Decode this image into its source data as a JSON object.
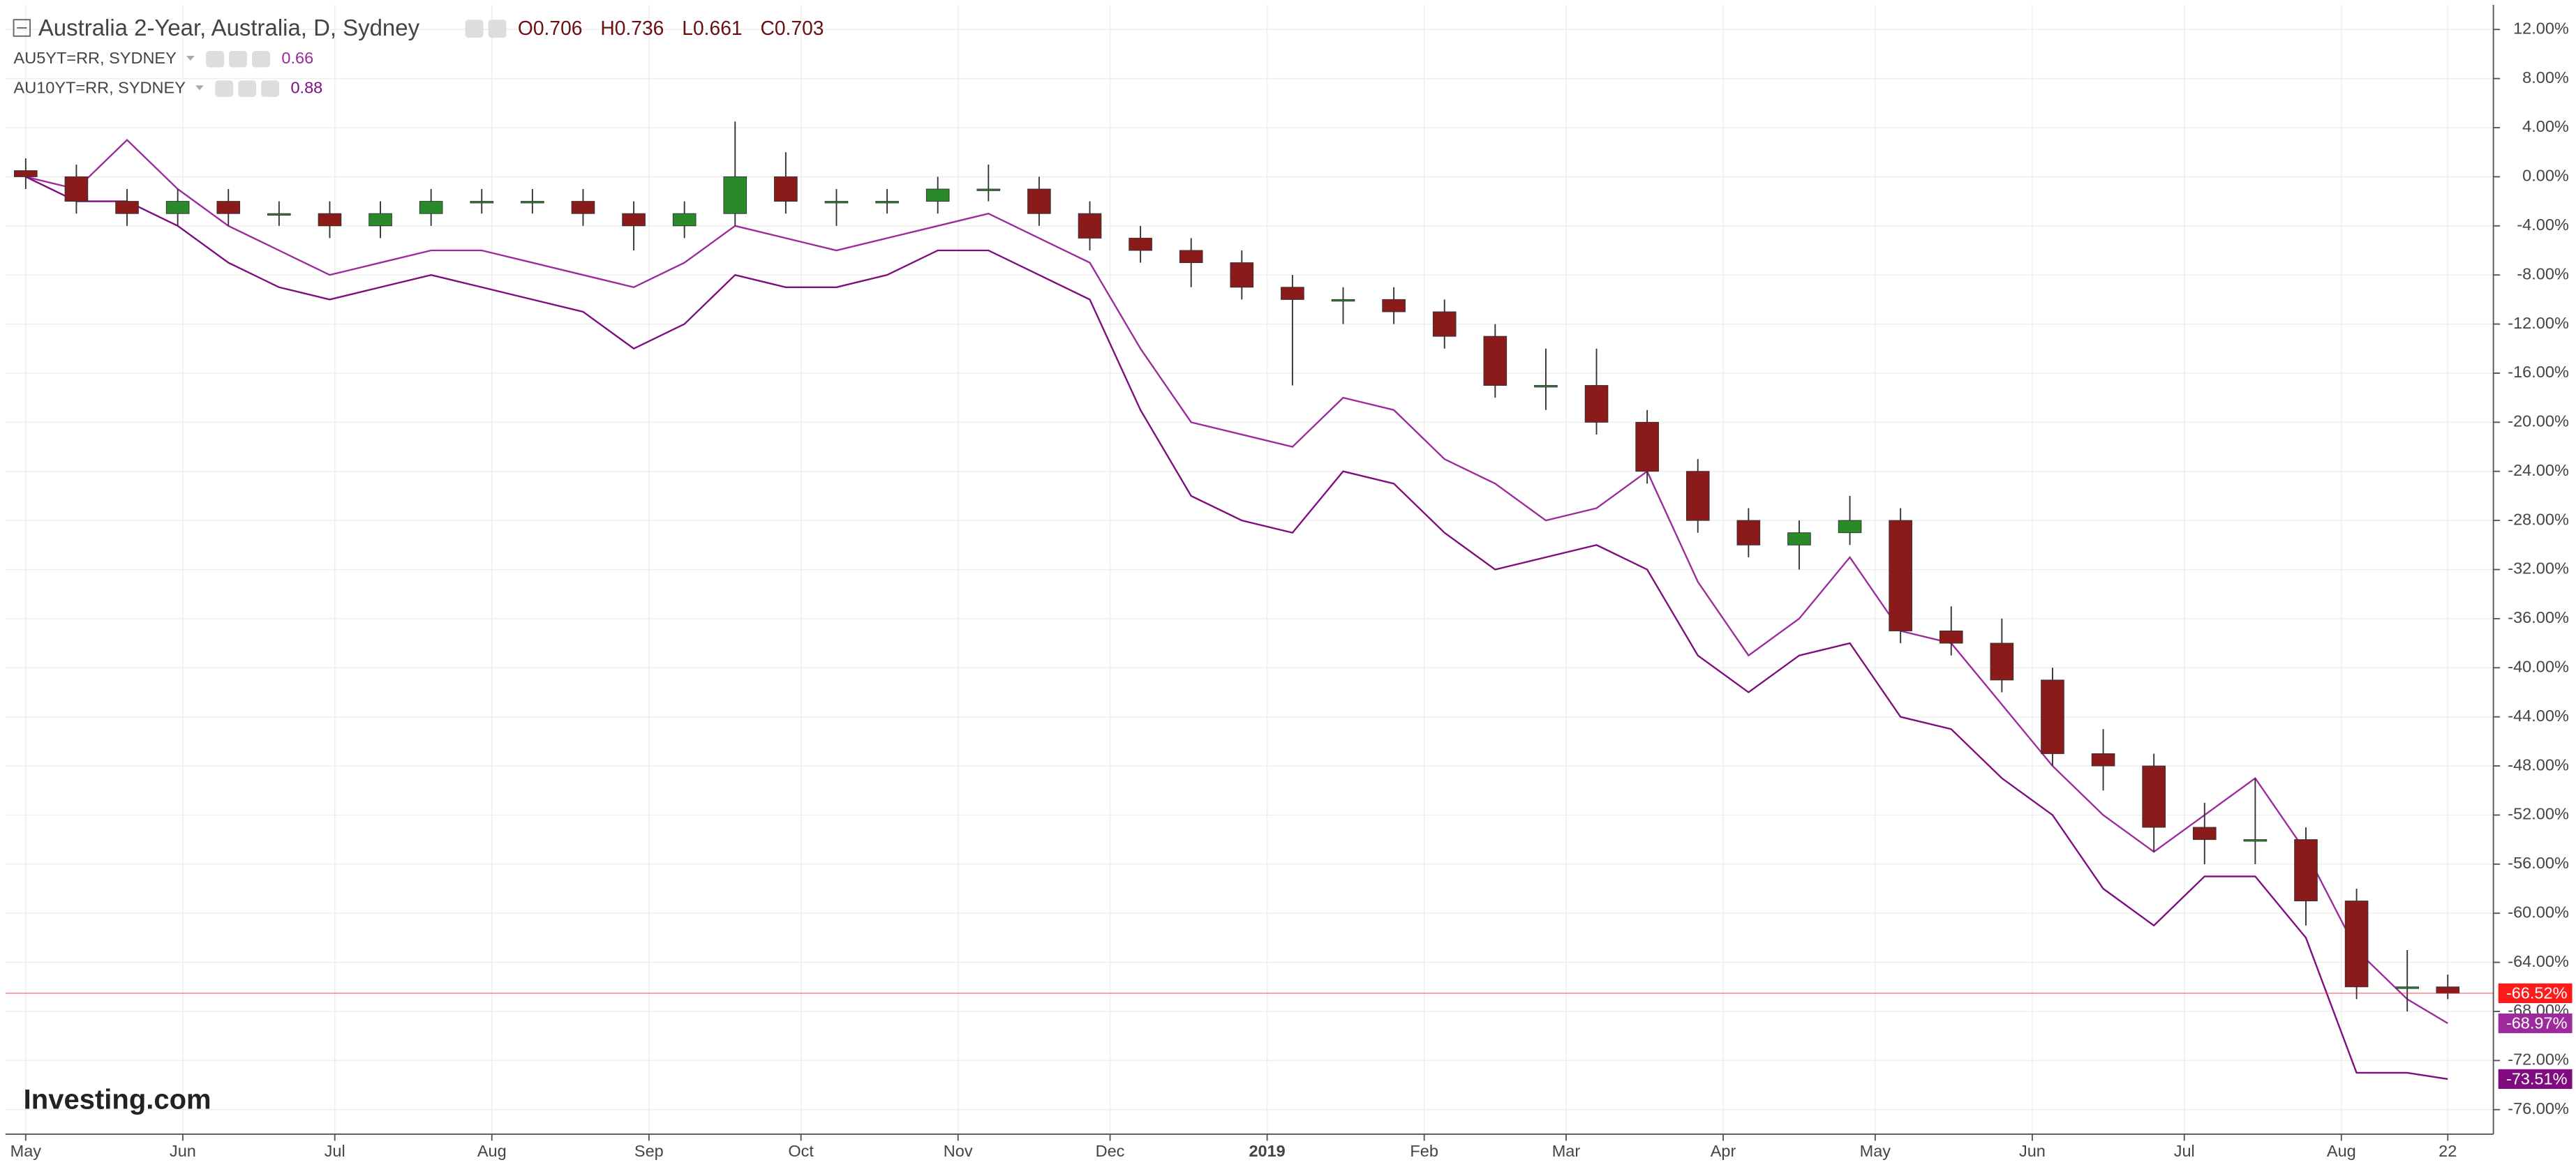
{
  "chart_data": {
    "type": "candlestick",
    "title": "Australia 2-Year, Australia, D, Sydney",
    "header_values": [
      "O0.706",
      "H0.736",
      "L0.661",
      "C0.703"
    ],
    "watermark": "Investing.com",
    "grid": true,
    "x": [
      0,
      10,
      20,
      30,
      40,
      50,
      60,
      70,
      80,
      90,
      100,
      110,
      120,
      130,
      140,
      150,
      160,
      170,
      180,
      190,
      200,
      210,
      220,
      230,
      240,
      250,
      260,
      270,
      280,
      290,
      300,
      310,
      320,
      330,
      340,
      350,
      360,
      370,
      380,
      390,
      400,
      410,
      420,
      430,
      440,
      450,
      460,
      470,
      478
    ],
    "xlim": [
      -4,
      487
    ],
    "xticks": [
      {
        "value": 0,
        "label": "May"
      },
      {
        "value": 31,
        "label": "Jun"
      },
      {
        "value": 61,
        "label": "Jul"
      },
      {
        "value": 92,
        "label": "Aug"
      },
      {
        "value": 123,
        "label": "Sep"
      },
      {
        "value": 153,
        "label": "Oct"
      },
      {
        "value": 184,
        "label": "Nov"
      },
      {
        "value": 214,
        "label": "Dec"
      },
      {
        "value": 245,
        "label": "2019"
      },
      {
        "value": 276,
        "label": "Feb"
      },
      {
        "value": 304,
        "label": "Mar"
      },
      {
        "value": 335,
        "label": "Apr"
      },
      {
        "value": 365,
        "label": "May"
      },
      {
        "value": 396,
        "label": "Jun"
      },
      {
        "value": 426,
        "label": "Jul"
      },
      {
        "value": 457,
        "label": "Aug"
      },
      {
        "value": 478,
        "label": "22"
      }
    ],
    "ylim": [
      -78,
      14
    ],
    "yticks": [
      {
        "value": 12,
        "label": "12.00%"
      },
      {
        "value": 8,
        "label": "8.00%"
      },
      {
        "value": 4,
        "label": "4.00%"
      },
      {
        "value": 0,
        "label": "0.00%"
      },
      {
        "value": -4,
        "label": "-4.00%"
      },
      {
        "value": -8,
        "label": "-8.00%"
      },
      {
        "value": -12,
        "label": "-12.00%"
      },
      {
        "value": -16,
        "label": "-16.00%"
      },
      {
        "value": -20,
        "label": "-20.00%"
      },
      {
        "value": -24,
        "label": "-24.00%"
      },
      {
        "value": -28,
        "label": "-28.00%"
      },
      {
        "value": -32,
        "label": "-32.00%"
      },
      {
        "value": -36,
        "label": "-36.00%"
      },
      {
        "value": -40,
        "label": "-40.00%"
      },
      {
        "value": -44,
        "label": "-44.00%"
      },
      {
        "value": -48,
        "label": "-48.00%"
      },
      {
        "value": -52,
        "label": "-52.00%"
      },
      {
        "value": -56,
        "label": "-56.00%"
      },
      {
        "value": -60,
        "label": "-60.00%"
      },
      {
        "value": -64,
        "label": "-64.00%"
      },
      {
        "value": -68,
        "label": "-68.00%"
      },
      {
        "value": -72,
        "label": "-72.00%"
      },
      {
        "value": -76,
        "label": "-76.00%"
      }
    ],
    "candles": {
      "up_color": "#2a8a2a",
      "down_color": "#8b1a1a",
      "last_color": "#ff1a1a",
      "open": [
        0.5,
        0,
        -2,
        -3,
        -2,
        -3,
        -3,
        -4,
        -3,
        -2,
        -2,
        -2,
        -3,
        -4,
        -3,
        0,
        -2,
        -2,
        -2,
        -1,
        -1,
        -3,
        -5,
        -6,
        -7,
        -9,
        -10,
        -10,
        -11,
        -13,
        -17,
        -17,
        -20,
        -24,
        -28,
        -30,
        -29,
        -28,
        -37,
        -38,
        -41,
        -47,
        -48,
        -53,
        -54,
        -54,
        -59,
        -66,
        -66
      ],
      "high": [
        1.5,
        1,
        -1,
        -1,
        -1,
        -2,
        -2,
        -2,
        -1,
        -1,
        -1,
        -1,
        -2,
        -2,
        4.5,
        2,
        -1,
        -1,
        0,
        1,
        0,
        -2,
        -4,
        -5,
        -6,
        -8,
        -9,
        -9,
        -10,
        -12,
        -14,
        -14,
        -19,
        -23,
        -27,
        -28,
        -26,
        -27,
        -35,
        -36,
        -40,
        -45,
        -47,
        -51,
        -49,
        -53,
        -58,
        -63,
        -65
      ],
      "low": [
        -1,
        -3,
        -4,
        -4,
        -4,
        -4,
        -5,
        -5,
        -4,
        -3,
        -3,
        -4,
        -6,
        -5,
        -4,
        -3,
        -4,
        -3,
        -3,
        -2,
        -4,
        -6,
        -7,
        -9,
        -10,
        -17,
        -12,
        -12,
        -14,
        -18,
        -19,
        -21,
        -25,
        -29,
        -31,
        -32,
        -30,
        -38,
        -39,
        -42,
        -48,
        -50,
        -55,
        -56,
        -56,
        -61,
        -67,
        -68,
        -67
      ],
      "close": [
        0,
        -2,
        -3,
        -2,
        -3,
        -3,
        -4,
        -3,
        -2,
        -2,
        -2,
        -3,
        -4,
        -3,
        0,
        -2,
        -2,
        -2,
        -1,
        -1,
        -3,
        -5,
        -6,
        -7,
        -9,
        -10,
        -10,
        -11,
        -13,
        -17,
        -17,
        -20,
        -24,
        -28,
        -30,
        -29,
        -28,
        -37,
        -38,
        -41,
        -47,
        -48,
        -53,
        -54,
        -54,
        -59,
        -66,
        -66,
        -66.52
      ],
      "value_labels": [
        null,
        null,
        null,
        null,
        null,
        null,
        null,
        null,
        null,
        null,
        null,
        null,
        null,
        null,
        null,
        null,
        null,
        null,
        null,
        null,
        null,
        null,
        null,
        null,
        null,
        null,
        null,
        null,
        null,
        null,
        null,
        null,
        null,
        null,
        null,
        null,
        null,
        null,
        null,
        null,
        null,
        null,
        null,
        null,
        null,
        null,
        null,
        null,
        "-66.52%"
      ]
    },
    "series": [
      {
        "name": "AU5YT=RR, SYDNEY",
        "legend_value": "0.66",
        "color": "#9c2a9c",
        "values": [
          0,
          -1,
          3,
          -1,
          -4,
          -6,
          -8,
          -7,
          -6,
          -6,
          -7,
          -8,
          -9,
          -7,
          -4,
          -5,
          -6,
          -5,
          -4,
          -3,
          -5,
          -7,
          -14,
          -20,
          -21,
          -22,
          -18,
          -19,
          -23,
          -25,
          -28,
          -27,
          -24,
          -33,
          -39,
          -36,
          -31,
          -37,
          -38,
          -43,
          -48,
          -52,
          -55,
          -52,
          -49,
          -55,
          -63,
          -67,
          -68.97
        ],
        "value_labels": [
          null,
          null,
          null,
          null,
          null,
          null,
          null,
          null,
          null,
          null,
          null,
          null,
          null,
          null,
          null,
          null,
          null,
          null,
          null,
          null,
          null,
          null,
          null,
          null,
          null,
          null,
          null,
          null,
          null,
          null,
          null,
          null,
          null,
          null,
          null,
          null,
          null,
          null,
          null,
          null,
          null,
          null,
          null,
          null,
          null,
          null,
          null,
          null,
          "-68.97%"
        ]
      },
      {
        "name": "AU10YT=RR, SYDNEY",
        "legend_value": "0.88",
        "color": "#7e0c7e",
        "values": [
          0,
          -2,
          -2,
          -4,
          -7,
          -9,
          -10,
          -9,
          -8,
          -9,
          -10,
          -11,
          -14,
          -12,
          -8,
          -9,
          -9,
          -8,
          -6,
          -6,
          -8,
          -10,
          -19,
          -26,
          -28,
          -29,
          -24,
          -25,
          -29,
          -32,
          -31,
          -30,
          -32,
          -39,
          -42,
          -39,
          -38,
          -44,
          -45,
          -49,
          -52,
          -58,
          -61,
          -57,
          -57,
          -62,
          -73,
          -73,
          -73.51
        ],
        "value_labels": [
          null,
          null,
          null,
          null,
          null,
          null,
          null,
          null,
          null,
          null,
          null,
          null,
          null,
          null,
          null,
          null,
          null,
          null,
          null,
          null,
          null,
          null,
          null,
          null,
          null,
          null,
          null,
          null,
          null,
          null,
          null,
          null,
          null,
          null,
          null,
          null,
          null,
          null,
          null,
          null,
          null,
          null,
          null,
          null,
          null,
          null,
          null,
          null,
          "-73.51%"
        ]
      }
    ]
  }
}
